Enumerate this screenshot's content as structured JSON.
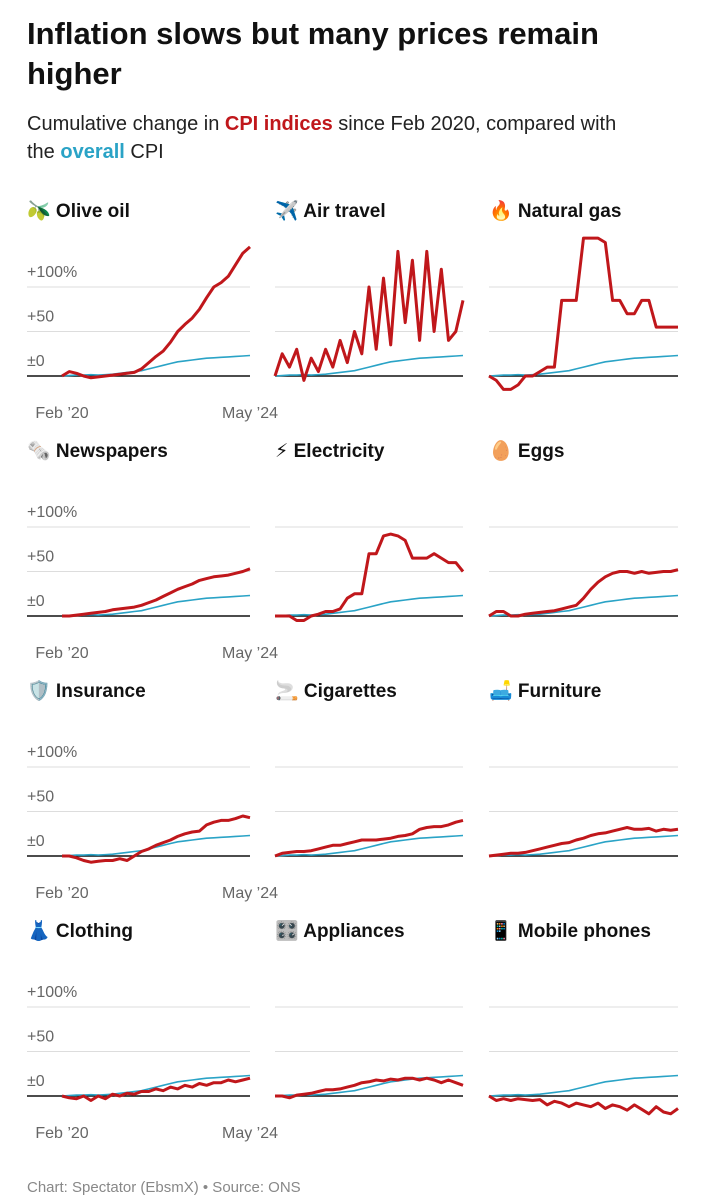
{
  "chart_data": {
    "type": "line",
    "title": [
      "Inflation slows but many prices remain",
      "higher"
    ],
    "subtitle": [
      "Cumulative change in ",
      "CPI indices",
      " since Feb 2020, compared with",
      "the ",
      "overall",
      " CPI"
    ],
    "categories": [
      "Feb ’20",
      null,
      null,
      null,
      null,
      null,
      null,
      null,
      null,
      null,
      null,
      null,
      null,
      null,
      null,
      null,
      null,
      null,
      null,
      null,
      null,
      null,
      null,
      null,
      null,
      null,
      "May ’24"
    ],
    "ylim": [
      -25,
      160
    ],
    "yticks": [
      {
        "value": 0,
        "label": "±0"
      },
      {
        "value": 50,
        "label": "+50"
      },
      {
        "value": 100,
        "label": "+100%"
      }
    ],
    "grid": true,
    "overall": {
      "name": "overall",
      "color": "#2aa3c6",
      "values": [
        0,
        0.5,
        1,
        1,
        1.5,
        1,
        1.5,
        2,
        3,
        4,
        5,
        6,
        8,
        10,
        12,
        14,
        16,
        17,
        18,
        19,
        20,
        20.5,
        21,
        21.5,
        22,
        22.5,
        23
      ]
    },
    "panels": [
      {
        "title": "🫒 Olive oil",
        "color": "#c0171b",
        "values": [
          0,
          5,
          3,
          0,
          -2,
          -1,
          0,
          1,
          2,
          3,
          4,
          8,
          15,
          22,
          28,
          38,
          50,
          58,
          65,
          75,
          88,
          100,
          105,
          112,
          125,
          138,
          145
        ]
      },
      {
        "title": "✈️ Air travel",
        "color": "#c0171b",
        "values": [
          0,
          25,
          10,
          30,
          -5,
          20,
          5,
          30,
          10,
          40,
          15,
          50,
          25,
          100,
          30,
          110,
          35,
          140,
          60,
          130,
          40,
          140,
          50,
          120,
          40,
          50,
          85
        ]
      },
      {
        "title": "🔥 Natural gas",
        "color": "#c0171b",
        "values": [
          0,
          -5,
          -15,
          -15,
          -10,
          0,
          0,
          5,
          10,
          10,
          85,
          85,
          85,
          155,
          155,
          155,
          150,
          85,
          85,
          70,
          70,
          85,
          85,
          55,
          55,
          55,
          55
        ]
      },
      {
        "title": "🗞️ Newspapers",
        "color": "#c0171b",
        "values": [
          0,
          0,
          1,
          2,
          3,
          4,
          5,
          7,
          8,
          9,
          10,
          12,
          15,
          18,
          22,
          26,
          30,
          33,
          36,
          40,
          42,
          44,
          45,
          46,
          48,
          50,
          53
        ]
      },
      {
        "title": "⚡ Electricity",
        "color": "#c0171b",
        "values": [
          0,
          0,
          0,
          -5,
          -5,
          0,
          2,
          5,
          5,
          8,
          20,
          25,
          25,
          70,
          70,
          90,
          92,
          90,
          85,
          65,
          65,
          65,
          70,
          65,
          60,
          60,
          50
        ]
      },
      {
        "title": "🥚 Eggs",
        "color": "#c0171b",
        "values": [
          0,
          5,
          5,
          0,
          0,
          2,
          3,
          4,
          5,
          6,
          8,
          10,
          12,
          20,
          30,
          38,
          44,
          48,
          50,
          50,
          48,
          50,
          48,
          49,
          50,
          50,
          52
        ]
      },
      {
        "title": "🛡️ Insurance",
        "color": "#c0171b",
        "values": [
          0,
          0,
          -2,
          -5,
          -7,
          -6,
          -5,
          -5,
          -3,
          -5,
          0,
          5,
          8,
          12,
          15,
          18,
          22,
          25,
          27,
          28,
          35,
          38,
          40,
          40,
          42,
          45,
          43
        ]
      },
      {
        "title": "🚬 Cigarettes",
        "color": "#c0171b",
        "values": [
          0,
          3,
          4,
          5,
          5,
          6,
          8,
          10,
          12,
          12,
          14,
          16,
          18,
          18,
          18,
          19,
          20,
          22,
          23,
          25,
          30,
          32,
          33,
          33,
          35,
          38,
          40
        ]
      },
      {
        "title": "🛋️ Furniture",
        "color": "#c0171b",
        "values": [
          0,
          1,
          2,
          3,
          3,
          4,
          6,
          8,
          10,
          12,
          14,
          15,
          18,
          20,
          23,
          25,
          26,
          28,
          30,
          32,
          30,
          30,
          31,
          28,
          30,
          29,
          30
        ]
      },
      {
        "title": "👗 Clothing",
        "color": "#c0171b",
        "values": [
          0,
          -2,
          -3,
          0,
          -5,
          0,
          -3,
          2,
          0,
          3,
          2,
          5,
          5,
          8,
          6,
          10,
          8,
          12,
          10,
          14,
          12,
          15,
          15,
          18,
          16,
          18,
          20
        ]
      },
      {
        "title": "🎛️ Appliances",
        "color": "#c0171b",
        "values": [
          0,
          0,
          -2,
          1,
          2,
          3,
          5,
          7,
          7,
          8,
          10,
          12,
          15,
          16,
          18,
          17,
          19,
          18,
          20,
          20,
          18,
          20,
          18,
          15,
          18,
          15,
          12
        ]
      },
      {
        "title": "📱 Mobile phones",
        "color": "#c0171b",
        "values": [
          0,
          -5,
          -3,
          -5,
          -3,
          -4,
          -5,
          -4,
          -10,
          -6,
          -8,
          -12,
          -8,
          -10,
          -12,
          -8,
          -14,
          -10,
          -12,
          -16,
          -10,
          -15,
          -20,
          -12,
          -18,
          -20,
          -14
        ]
      }
    ],
    "source": "Chart: Spectator (EbsmX) • Source: ONS"
  }
}
